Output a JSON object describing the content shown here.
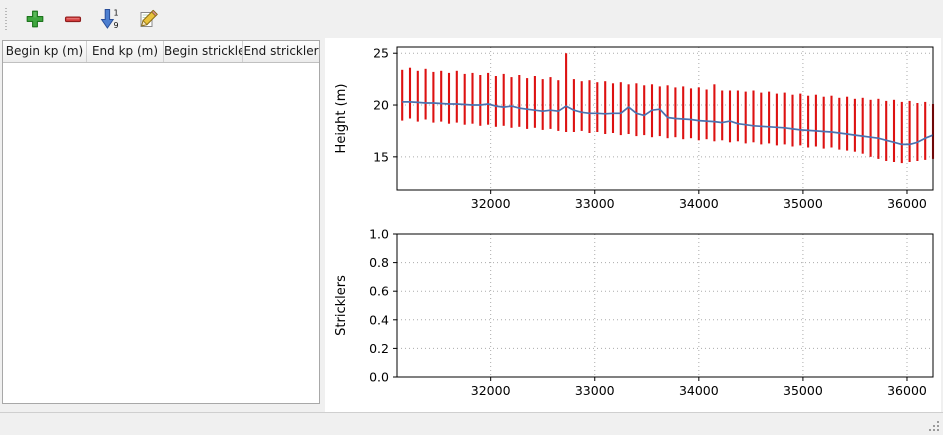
{
  "window": {
    "background": "#f0f0f0",
    "panel_background": "#ffffff"
  },
  "toolbar": {
    "buttons": [
      {
        "name": "add-row",
        "icon": "plus-icon",
        "color": "#3fa63f"
      },
      {
        "name": "remove-row",
        "icon": "minus-icon",
        "color": "#d23b3b"
      },
      {
        "name": "sort-rows",
        "icon": "sort-numeric-icon",
        "color": "#4d7fd0"
      },
      {
        "name": "edit-row",
        "icon": "pencil-icon",
        "color": "#e9c23c"
      }
    ],
    "sort_digit_top": "1",
    "sort_digit_bottom": "9"
  },
  "table": {
    "columns": [
      "Begin kp (m)",
      "End kp (m)",
      "Begin strickler",
      "End strickler"
    ],
    "rows": []
  },
  "chart_data": [
    {
      "type": "bar",
      "title": "",
      "xlabel": "",
      "ylabel": "Height (m)",
      "xlim": [
        31100,
        36250
      ],
      "ylim": [
        11.8,
        25.6
      ],
      "xticks": [
        32000,
        33000,
        34000,
        35000,
        36000
      ],
      "xticklabels": [
        "32000",
        "33000",
        "34000",
        "35000",
        "36000"
      ],
      "yticks": [
        15,
        20,
        25
      ],
      "yticklabels": [
        "15",
        "20",
        "25"
      ],
      "grid": true,
      "bar_color": "#dd1111",
      "line_color": "#4a72b0",
      "x": [
        31150,
        31225,
        31300,
        31375,
        31450,
        31525,
        31600,
        31675,
        31750,
        31825,
        31900,
        31975,
        32050,
        32125,
        32200,
        32275,
        32350,
        32425,
        32500,
        32575,
        32650,
        32725,
        32800,
        32875,
        32950,
        33025,
        33100,
        33175,
        33250,
        33325,
        33400,
        33475,
        33550,
        33625,
        33700,
        33775,
        33850,
        33925,
        34000,
        34075,
        34150,
        34225,
        34300,
        34375,
        34450,
        34525,
        34600,
        34675,
        34750,
        34825,
        34900,
        34975,
        35050,
        35125,
        35200,
        35275,
        35350,
        35425,
        35500,
        35575,
        35650,
        35725,
        35800,
        35875,
        35950,
        36025,
        36100,
        36175,
        36250
      ],
      "bars": {
        "hi": [
          23.4,
          23.6,
          23.3,
          23.5,
          23.2,
          23.3,
          23.1,
          23.3,
          23.0,
          23.1,
          22.9,
          23.1,
          22.8,
          23.0,
          22.7,
          22.9,
          22.6,
          22.8,
          22.5,
          22.7,
          22.4,
          25.0,
          22.5,
          22.3,
          22.4,
          22.2,
          22.3,
          22.1,
          22.2,
          22.0,
          22.1,
          21.9,
          22.0,
          21.8,
          21.9,
          21.7,
          21.8,
          21.6,
          21.7,
          21.5,
          22.0,
          21.4,
          21.4,
          21.4,
          21.3,
          21.4,
          21.2,
          21.3,
          21.1,
          21.2,
          21.0,
          21.1,
          20.9,
          21.0,
          20.8,
          20.9,
          20.7,
          20.8,
          20.6,
          20.7,
          20.5,
          20.6,
          20.4,
          20.5,
          20.3,
          20.4,
          20.2,
          20.3,
          20.1
        ],
        "lo": [
          18.5,
          18.7,
          18.4,
          18.6,
          18.3,
          18.4,
          18.2,
          18.3,
          18.1,
          18.2,
          18.0,
          18.1,
          17.9,
          18.0,
          17.8,
          17.9,
          17.7,
          17.8,
          17.6,
          17.7,
          17.5,
          17.4,
          17.4,
          17.5,
          17.3,
          17.4,
          17.2,
          17.3,
          17.1,
          17.2,
          17.0,
          17.1,
          16.9,
          17.0,
          16.8,
          16.9,
          16.7,
          16.8,
          16.6,
          16.7,
          16.5,
          16.6,
          16.4,
          16.5,
          16.3,
          16.4,
          16.2,
          16.3,
          16.1,
          16.2,
          16.0,
          16.1,
          15.9,
          16.0,
          15.8,
          15.9,
          15.7,
          15.6,
          15.5,
          15.3,
          15.0,
          14.8,
          14.6,
          14.5,
          14.4,
          14.5,
          14.6,
          14.7,
          14.8
        ]
      },
      "line": [
        20.3,
        20.3,
        20.25,
        20.2,
        20.2,
        20.15,
        20.1,
        20.1,
        20.05,
        20.0,
        20.0,
        20.1,
        19.9,
        19.8,
        19.9,
        19.7,
        19.6,
        19.5,
        19.4,
        19.5,
        19.4,
        19.9,
        19.5,
        19.3,
        19.2,
        19.2,
        19.15,
        19.2,
        19.2,
        19.8,
        19.2,
        19.0,
        19.5,
        19.6,
        18.8,
        18.7,
        18.65,
        18.6,
        18.5,
        18.45,
        18.4,
        18.3,
        18.45,
        18.2,
        18.1,
        18.0,
        17.95,
        17.9,
        17.85,
        17.8,
        17.7,
        17.6,
        17.55,
        17.5,
        17.45,
        17.4,
        17.3,
        17.2,
        17.1,
        17.0,
        16.9,
        16.8,
        16.6,
        16.4,
        16.2,
        16.2,
        16.4,
        16.8,
        17.1
      ]
    },
    {
      "type": "empty",
      "title": "",
      "xlabel": "",
      "ylabel": "Stricklers",
      "xlim": [
        31100,
        36250
      ],
      "ylim": [
        0,
        1
      ],
      "xticks": [
        32000,
        33000,
        34000,
        35000,
        36000
      ],
      "xticklabels": [
        "32000",
        "33000",
        "34000",
        "35000",
        "36000"
      ],
      "yticks": [
        0,
        0.2,
        0.4,
        0.6,
        0.8,
        1
      ],
      "yticklabels": [
        "0.0",
        "0.2",
        "0.4",
        "0.6",
        "0.8",
        "1.0"
      ],
      "grid": true
    }
  ]
}
